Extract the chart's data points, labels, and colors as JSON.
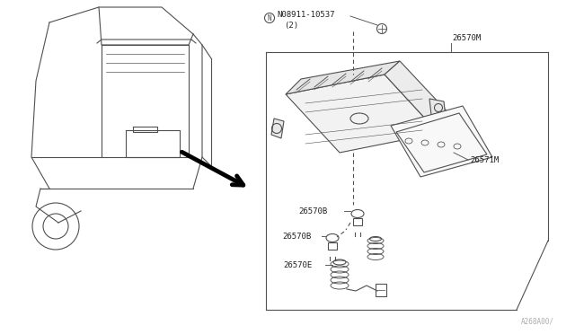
{
  "bg_color": "#ffffff",
  "line_color": "#505050",
  "line_width": 0.8,
  "fig_width": 6.4,
  "fig_height": 3.72,
  "dpi": 100,
  "labels": {
    "part_n": "N08911-10537",
    "part_n_sub": "(2)",
    "part_26570M": "26570M",
    "part_26571M": "26571M",
    "part_26570B_1": "26570B",
    "part_26570B_2": "26570B",
    "part_26570E": "26570E",
    "watermark": "A268A00/"
  },
  "font_size": 6.5,
  "arrow_color": "#000000"
}
